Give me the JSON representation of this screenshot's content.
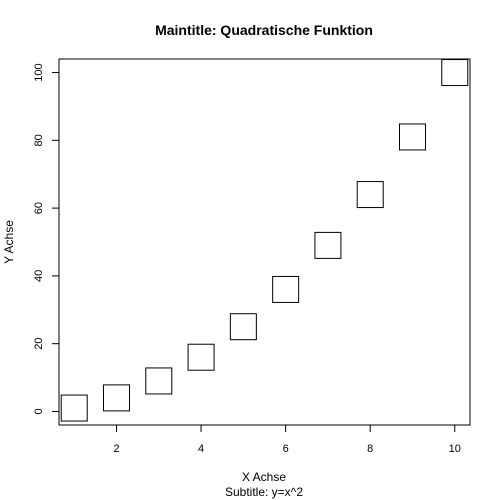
{
  "chart_data": {
    "type": "scatter",
    "title": "Maintitle: Quadratische Funktion",
    "subtitle": "Subtitle: y=x^2",
    "xlabel": "X Achse",
    "ylabel": "Y Achse",
    "xlim": [
      0.64,
      10.36
    ],
    "ylim": [
      -4,
      104
    ],
    "x_ticks": [
      2,
      4,
      6,
      8,
      10
    ],
    "y_ticks": [
      0,
      20,
      40,
      60,
      80,
      100
    ],
    "marker": "open-square",
    "grid": false,
    "x": [
      1,
      2,
      3,
      4,
      5,
      6,
      7,
      8,
      9,
      10
    ],
    "y": [
      1,
      4,
      9,
      16,
      25,
      36,
      49,
      64,
      81,
      100
    ]
  }
}
